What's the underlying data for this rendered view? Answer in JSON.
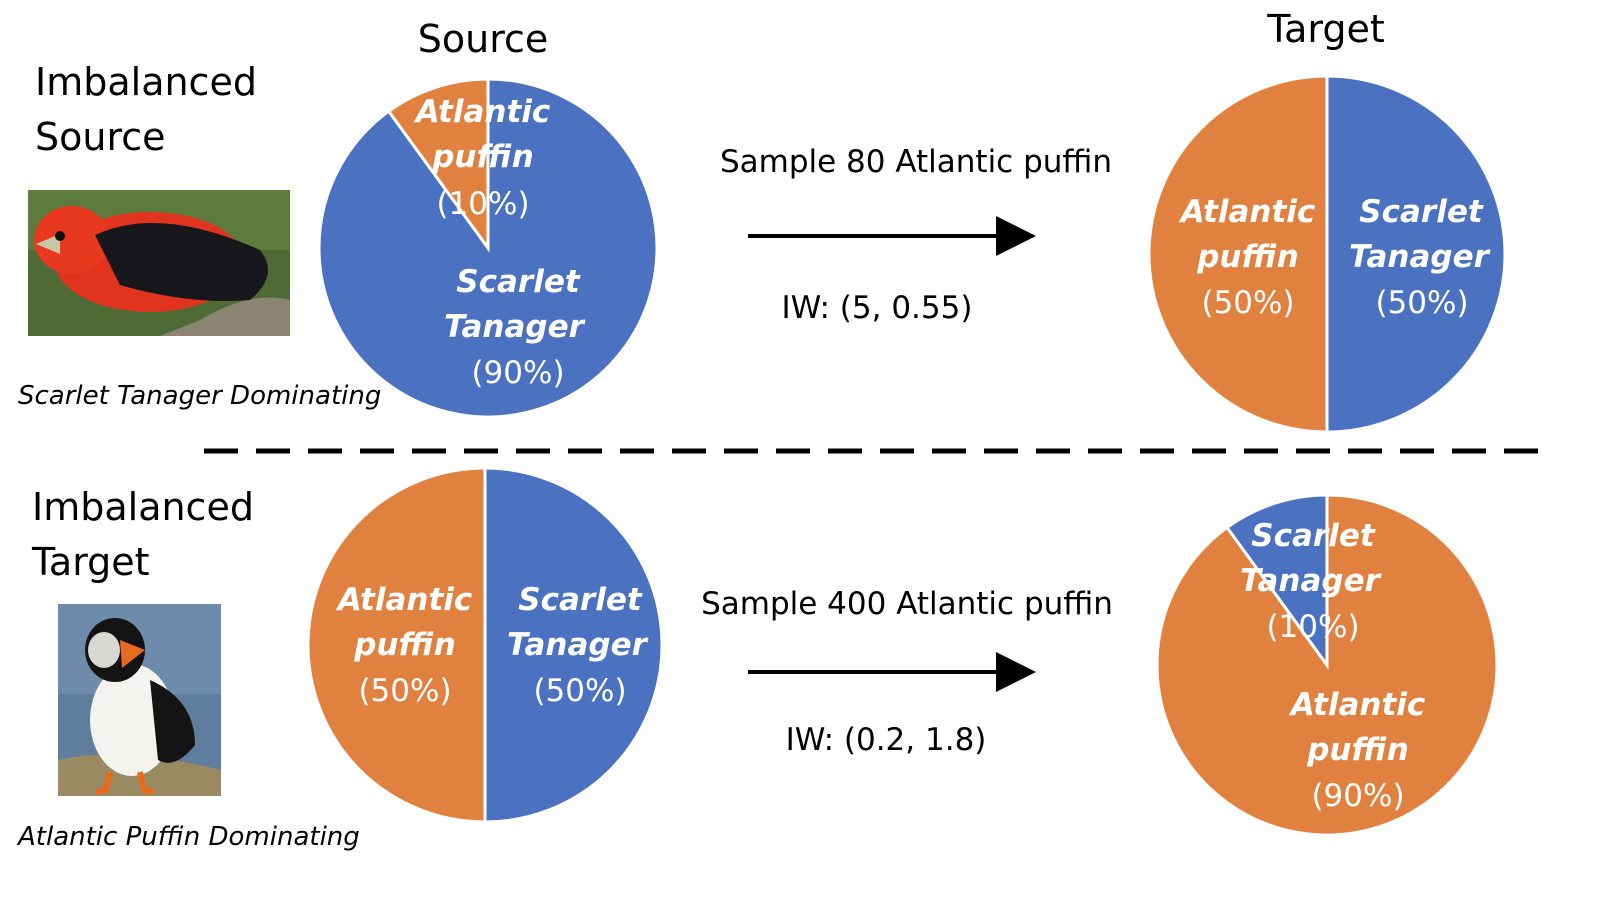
{
  "colors": {
    "orange": "#E0813F",
    "blue": "#4A72C1",
    "slice_text": "#FFFFFF",
    "text": "#000000"
  },
  "top": {
    "label_line1": "Imbalanced",
    "label_line2": "Source",
    "caption": "Scarlet Tanager Dominating",
    "image_icon": "scarlet-tanager-photo",
    "source_header": "Source",
    "target_header": "Target",
    "arrow_text": "Sample 80 Atlantic puffin",
    "iw_text": "IW: (5, 0.55)"
  },
  "bottom": {
    "label_line1": "Imbalanced",
    "label_line2": "Target",
    "caption": "Atlantic Puffin Dominating",
    "image_icon": "atlantic-puffin-photo",
    "arrow_text": "Sample 400 Atlantic puffin",
    "iw_text": "IW: (0.2, 1.8)"
  },
  "chart_data": [
    {
      "type": "pie",
      "id": "top-source",
      "slices": [
        {
          "label_line1": "Atlantic",
          "label_line2": "puffin",
          "pct_label": "(10%)",
          "value": 10,
          "color": "#E0813F"
        },
        {
          "label_line1": "Scarlet",
          "label_line2": "Tanager",
          "pct_label": "(90%)",
          "value": 90,
          "color": "#4A72C1"
        }
      ]
    },
    {
      "type": "pie",
      "id": "top-target",
      "slices": [
        {
          "label_line1": "Atlantic",
          "label_line2": "puffin",
          "pct_label": "(50%)",
          "value": 50,
          "color": "#E0813F"
        },
        {
          "label_line1": "Scarlet",
          "label_line2": "Tanager",
          "pct_label": "(50%)",
          "value": 50,
          "color": "#4A72C1"
        }
      ]
    },
    {
      "type": "pie",
      "id": "bottom-source",
      "slices": [
        {
          "label_line1": "Atlantic",
          "label_line2": "puffin",
          "pct_label": "(50%)",
          "value": 50,
          "color": "#E0813F"
        },
        {
          "label_line1": "Scarlet",
          "label_line2": "Tanager",
          "pct_label": "(50%)",
          "value": 50,
          "color": "#4A72C1"
        }
      ]
    },
    {
      "type": "pie",
      "id": "bottom-target",
      "slices": [
        {
          "label_line1": "Atlantic",
          "label_line2": "puffin",
          "pct_label": "(90%)",
          "value": 90,
          "color": "#E0813F"
        },
        {
          "label_line1": "Scarlet",
          "label_line2": "Tanager",
          "pct_label": "(10%)",
          "value": 10,
          "color": "#4A72C1"
        }
      ]
    }
  ]
}
